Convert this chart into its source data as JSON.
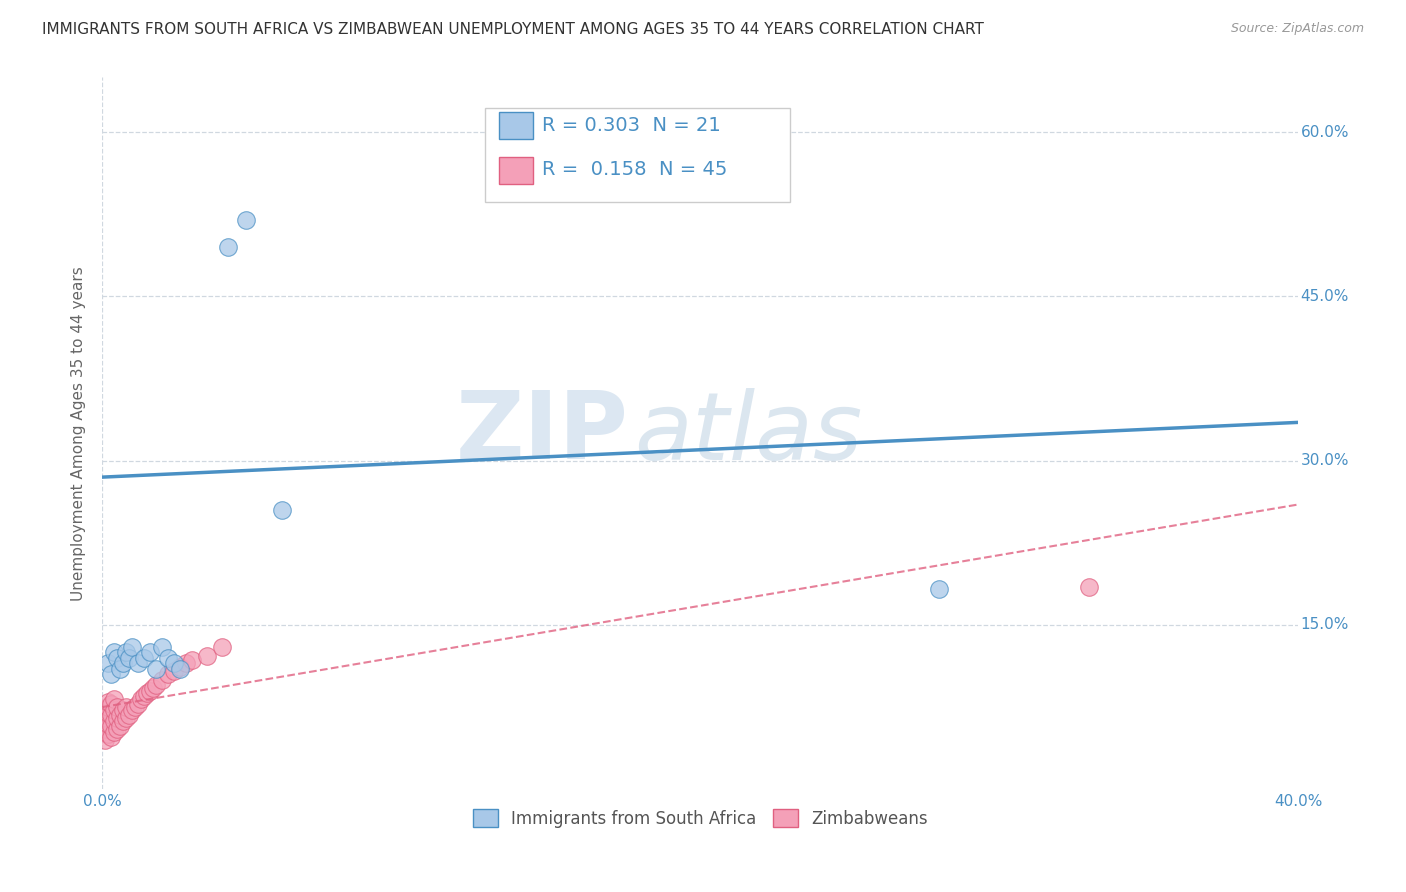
{
  "title": "IMMIGRANTS FROM SOUTH AFRICA VS ZIMBABWEAN UNEMPLOYMENT AMONG AGES 35 TO 44 YEARS CORRELATION CHART",
  "source": "Source: ZipAtlas.com",
  "ylabel": "Unemployment Among Ages 35 to 44 years",
  "xlim": [
    0.0,
    0.4
  ],
  "ylim": [
    0.0,
    0.65
  ],
  "xticks": [
    0.0,
    0.1,
    0.2,
    0.3,
    0.4
  ],
  "yticks": [
    0.15,
    0.3,
    0.45,
    0.6
  ],
  "xtick_labels": [
    "0.0%",
    "",
    "",
    "",
    "40.0%"
  ],
  "ytick_labels_right": [
    "15.0%",
    "30.0%",
    "45.0%",
    "60.0%"
  ],
  "blue_color": "#A8C8E8",
  "pink_color": "#F4A0B8",
  "blue_edge": "#4A90C4",
  "pink_edge": "#E06080",
  "blue_scatter_x": [
    0.002,
    0.003,
    0.004,
    0.005,
    0.006,
    0.007,
    0.008,
    0.009,
    0.01,
    0.012,
    0.014,
    0.016,
    0.018,
    0.02,
    0.022,
    0.024,
    0.026,
    0.042,
    0.048,
    0.28,
    0.06
  ],
  "blue_scatter_y": [
    0.115,
    0.105,
    0.125,
    0.12,
    0.11,
    0.115,
    0.125,
    0.12,
    0.13,
    0.115,
    0.12,
    0.125,
    0.11,
    0.13,
    0.12,
    0.115,
    0.11,
    0.495,
    0.52,
    0.183,
    0.255
  ],
  "pink_scatter_x": [
    0.001,
    0.001,
    0.001,
    0.001,
    0.002,
    0.002,
    0.002,
    0.002,
    0.002,
    0.003,
    0.003,
    0.003,
    0.003,
    0.004,
    0.004,
    0.004,
    0.004,
    0.005,
    0.005,
    0.005,
    0.006,
    0.006,
    0.007,
    0.007,
    0.008,
    0.008,
    0.009,
    0.01,
    0.011,
    0.012,
    0.013,
    0.014,
    0.015,
    0.016,
    0.017,
    0.018,
    0.02,
    0.022,
    0.024,
    0.026,
    0.028,
    0.03,
    0.035,
    0.04,
    0.33
  ],
  "pink_scatter_y": [
    0.045,
    0.055,
    0.065,
    0.07,
    0.05,
    0.06,
    0.07,
    0.075,
    0.08,
    0.048,
    0.058,
    0.068,
    0.078,
    0.052,
    0.062,
    0.072,
    0.082,
    0.055,
    0.065,
    0.075,
    0.058,
    0.068,
    0.062,
    0.072,
    0.065,
    0.075,
    0.068,
    0.072,
    0.075,
    0.078,
    0.082,
    0.085,
    0.088,
    0.09,
    0.092,
    0.095,
    0.1,
    0.105,
    0.108,
    0.112,
    0.115,
    0.118,
    0.122,
    0.13,
    0.185
  ],
  "blue_line_x": [
    0.0,
    0.4
  ],
  "blue_line_y": [
    0.285,
    0.335
  ],
  "pink_line_x": [
    0.0,
    0.4
  ],
  "pink_line_y": [
    0.075,
    0.26
  ],
  "legend_blue_R": "0.303",
  "legend_blue_N": "21",
  "legend_pink_R": "0.158",
  "legend_pink_N": "45",
  "watermark_zip": "ZIP",
  "watermark_atlas": "atlas",
  "background_color": "#ffffff",
  "grid_color": "#d0d8e0",
  "title_fontsize": 11,
  "label_fontsize": 11,
  "tick_fontsize": 11,
  "legend_fontsize": 14,
  "axis_color": "#4A90C4"
}
